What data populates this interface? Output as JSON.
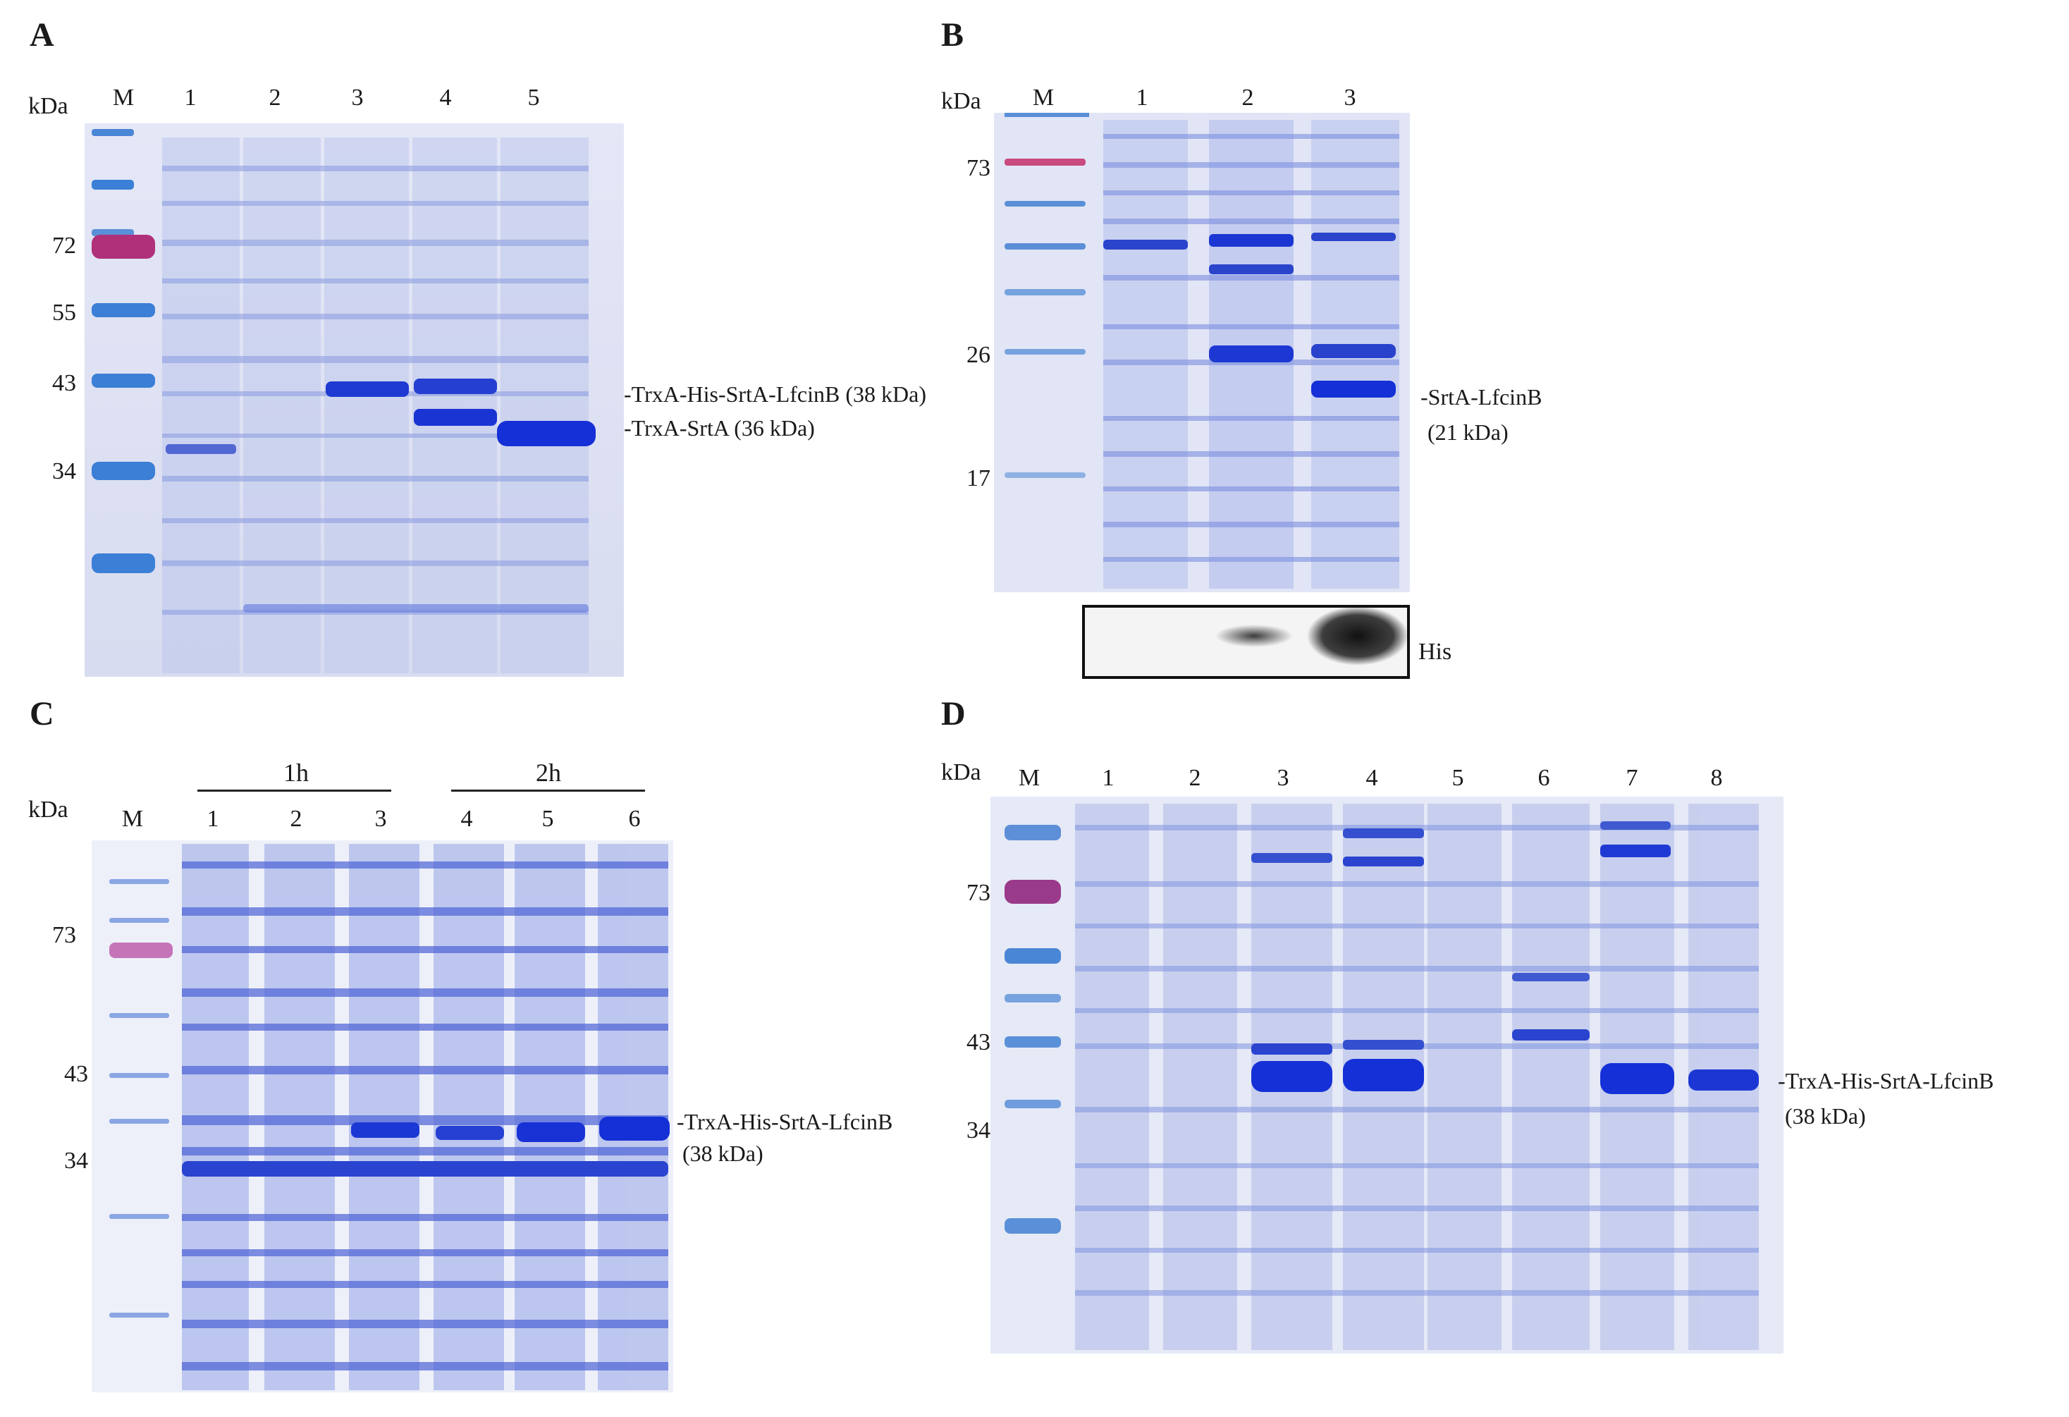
{
  "colors": {
    "gel_bg": "#dde1f3",
    "band": "#2f46c8",
    "band_strong": "#1530d6",
    "marker": "#3b7fd6",
    "marker_pink": "#b0307a",
    "text": "#1a1a1a"
  },
  "panels": {
    "A": {
      "label": "A",
      "kda": "kDa",
      "lanes": [
        "M",
        "1",
        "2",
        "3",
        "4",
        "5"
      ],
      "markers": [
        "72",
        "55",
        "43",
        "34"
      ],
      "annotations": [
        {
          "text": "-TrxA-His-SrtA-LfcinB (38 kDa)"
        },
        {
          "text": "-TrxA-SrtA (36 kDa)"
        }
      ]
    },
    "B": {
      "label": "B",
      "kda": "kDa",
      "lanes": [
        "M",
        "1",
        "2",
        "3"
      ],
      "markers": [
        "73",
        "26",
        "17"
      ],
      "annotation_line1": "-SrtA-LfcinB",
      "annotation_line2": "(21 kDa)",
      "blot_label": "His"
    },
    "C": {
      "label": "C",
      "kda": "kDa",
      "times": [
        "1h",
        "2h"
      ],
      "lanes": [
        "M",
        "1",
        "2",
        "3",
        "4",
        "5",
        "6"
      ],
      "markers": [
        "73",
        "43",
        "34"
      ],
      "annotation_line1": "-TrxA-His-SrtA-LfcinB",
      "annotation_line2": "(38 kDa)"
    },
    "D": {
      "label": "D",
      "kda": "kDa",
      "lanes": [
        "M",
        "1",
        "2",
        "3",
        "4",
        "5",
        "6",
        "7",
        "8"
      ],
      "markers": [
        "73",
        "43",
        "34"
      ],
      "annotation_line1": "-TrxA-His-SrtA-LfcinB",
      "annotation_line2": "(38 kDa)"
    }
  }
}
